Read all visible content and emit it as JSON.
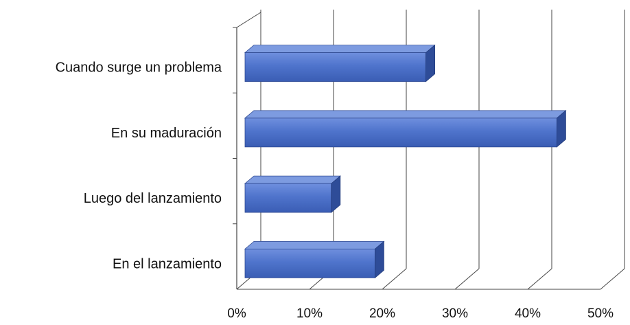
{
  "chart_data": {
    "type": "bar",
    "orientation": "horizontal",
    "style": "3d",
    "categories": [
      "Cuando surge un problema",
      "En su maduración",
      "Luego del lanzamiento",
      "En el lanzamiento"
    ],
    "values": [
      26,
      44,
      13,
      19
    ],
    "xticks": [
      "0%",
      "10%",
      "20%",
      "30%",
      "40%",
      "50%"
    ],
    "xlim": [
      0,
      50
    ],
    "grid": true,
    "title": "",
    "xlabel": "",
    "ylabel": "",
    "colors": {
      "bar_front": "#4f74cc",
      "bar_top": "#7d9be0",
      "bar_side": "#2e4c98",
      "gridline": "#444444"
    }
  }
}
